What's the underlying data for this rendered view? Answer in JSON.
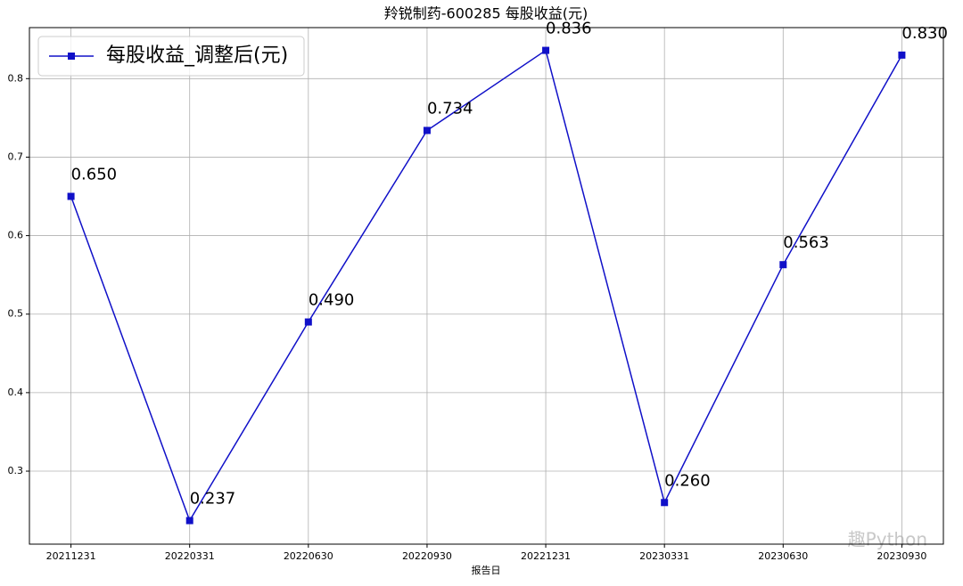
{
  "chart_data": {
    "type": "line",
    "title": "羚锐制药-600285 每股收益(元)",
    "xlabel": "报告日",
    "categories": [
      "20211231",
      "20220331",
      "20220630",
      "20220930",
      "20221231",
      "20230331",
      "20230630",
      "20230930"
    ],
    "series": [
      {
        "name": "每股收益_调整后(元)",
        "color": "#1010c8",
        "values": [
          0.65,
          0.237,
          0.49,
          0.734,
          0.836,
          0.26,
          0.563,
          0.83
        ],
        "value_labels": [
          "0.650",
          "0.237",
          "0.490",
          "0.734",
          "0.836",
          "0.260",
          "0.563",
          "0.830"
        ]
      }
    ],
    "ylim": [
      0.207,
      0.865
    ],
    "yticks": [
      0.3,
      0.4,
      0.5,
      0.6,
      0.7,
      0.8
    ],
    "grid": true,
    "legend": "upper left",
    "marker": "square",
    "watermark": "趣Python"
  }
}
